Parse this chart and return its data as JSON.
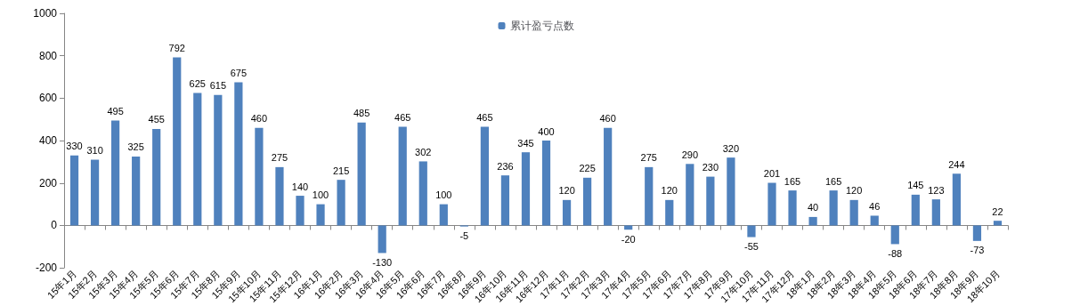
{
  "chart_data": {
    "type": "bar",
    "categories": [
      "15年1月",
      "15年2月",
      "15年3月",
      "15年4月",
      "15年5月",
      "15年6月",
      "15年7月",
      "15年8月",
      "15年9月",
      "15年10月",
      "15年11月",
      "15年12月",
      "16年1月",
      "16年2月",
      "16年3月",
      "16年4月",
      "16年5月",
      "16年6月",
      "16年7月",
      "16年8月",
      "16年9月",
      "16年10月",
      "16年11月",
      "16年12月",
      "17年1月",
      "17年2月",
      "17年3月",
      "17年4月",
      "17年5月",
      "17年6月",
      "17年7月",
      "17年8月",
      "17年9月",
      "17年10月",
      "17年11月",
      "17年12月",
      "18年1月",
      "18年2月",
      "18年3月",
      "18年4月",
      "18年5月",
      "18年6月",
      "18年7月",
      "18年8月",
      "18年9月",
      "18年10月"
    ],
    "series": [
      {
        "name": "累计盈亏点数",
        "color": "#4f81bd",
        "values": [
          330,
          310,
          495,
          325,
          455,
          792,
          625,
          615,
          675,
          460,
          275,
          140,
          100,
          215,
          485,
          -130,
          465,
          302,
          100,
          -5,
          465,
          236,
          345,
          400,
          120,
          225,
          460,
          -20,
          275,
          120,
          290,
          230,
          320,
          -55,
          201,
          165,
          40,
          165,
          120,
          46,
          -88,
          145,
          123,
          244,
          -73,
          22
        ]
      }
    ],
    "ylim": [
      -200,
      1000
    ],
    "yticks": [
      -200,
      0,
      200,
      400,
      600,
      800,
      1000
    ],
    "data_labels": true,
    "legend": "top"
  }
}
